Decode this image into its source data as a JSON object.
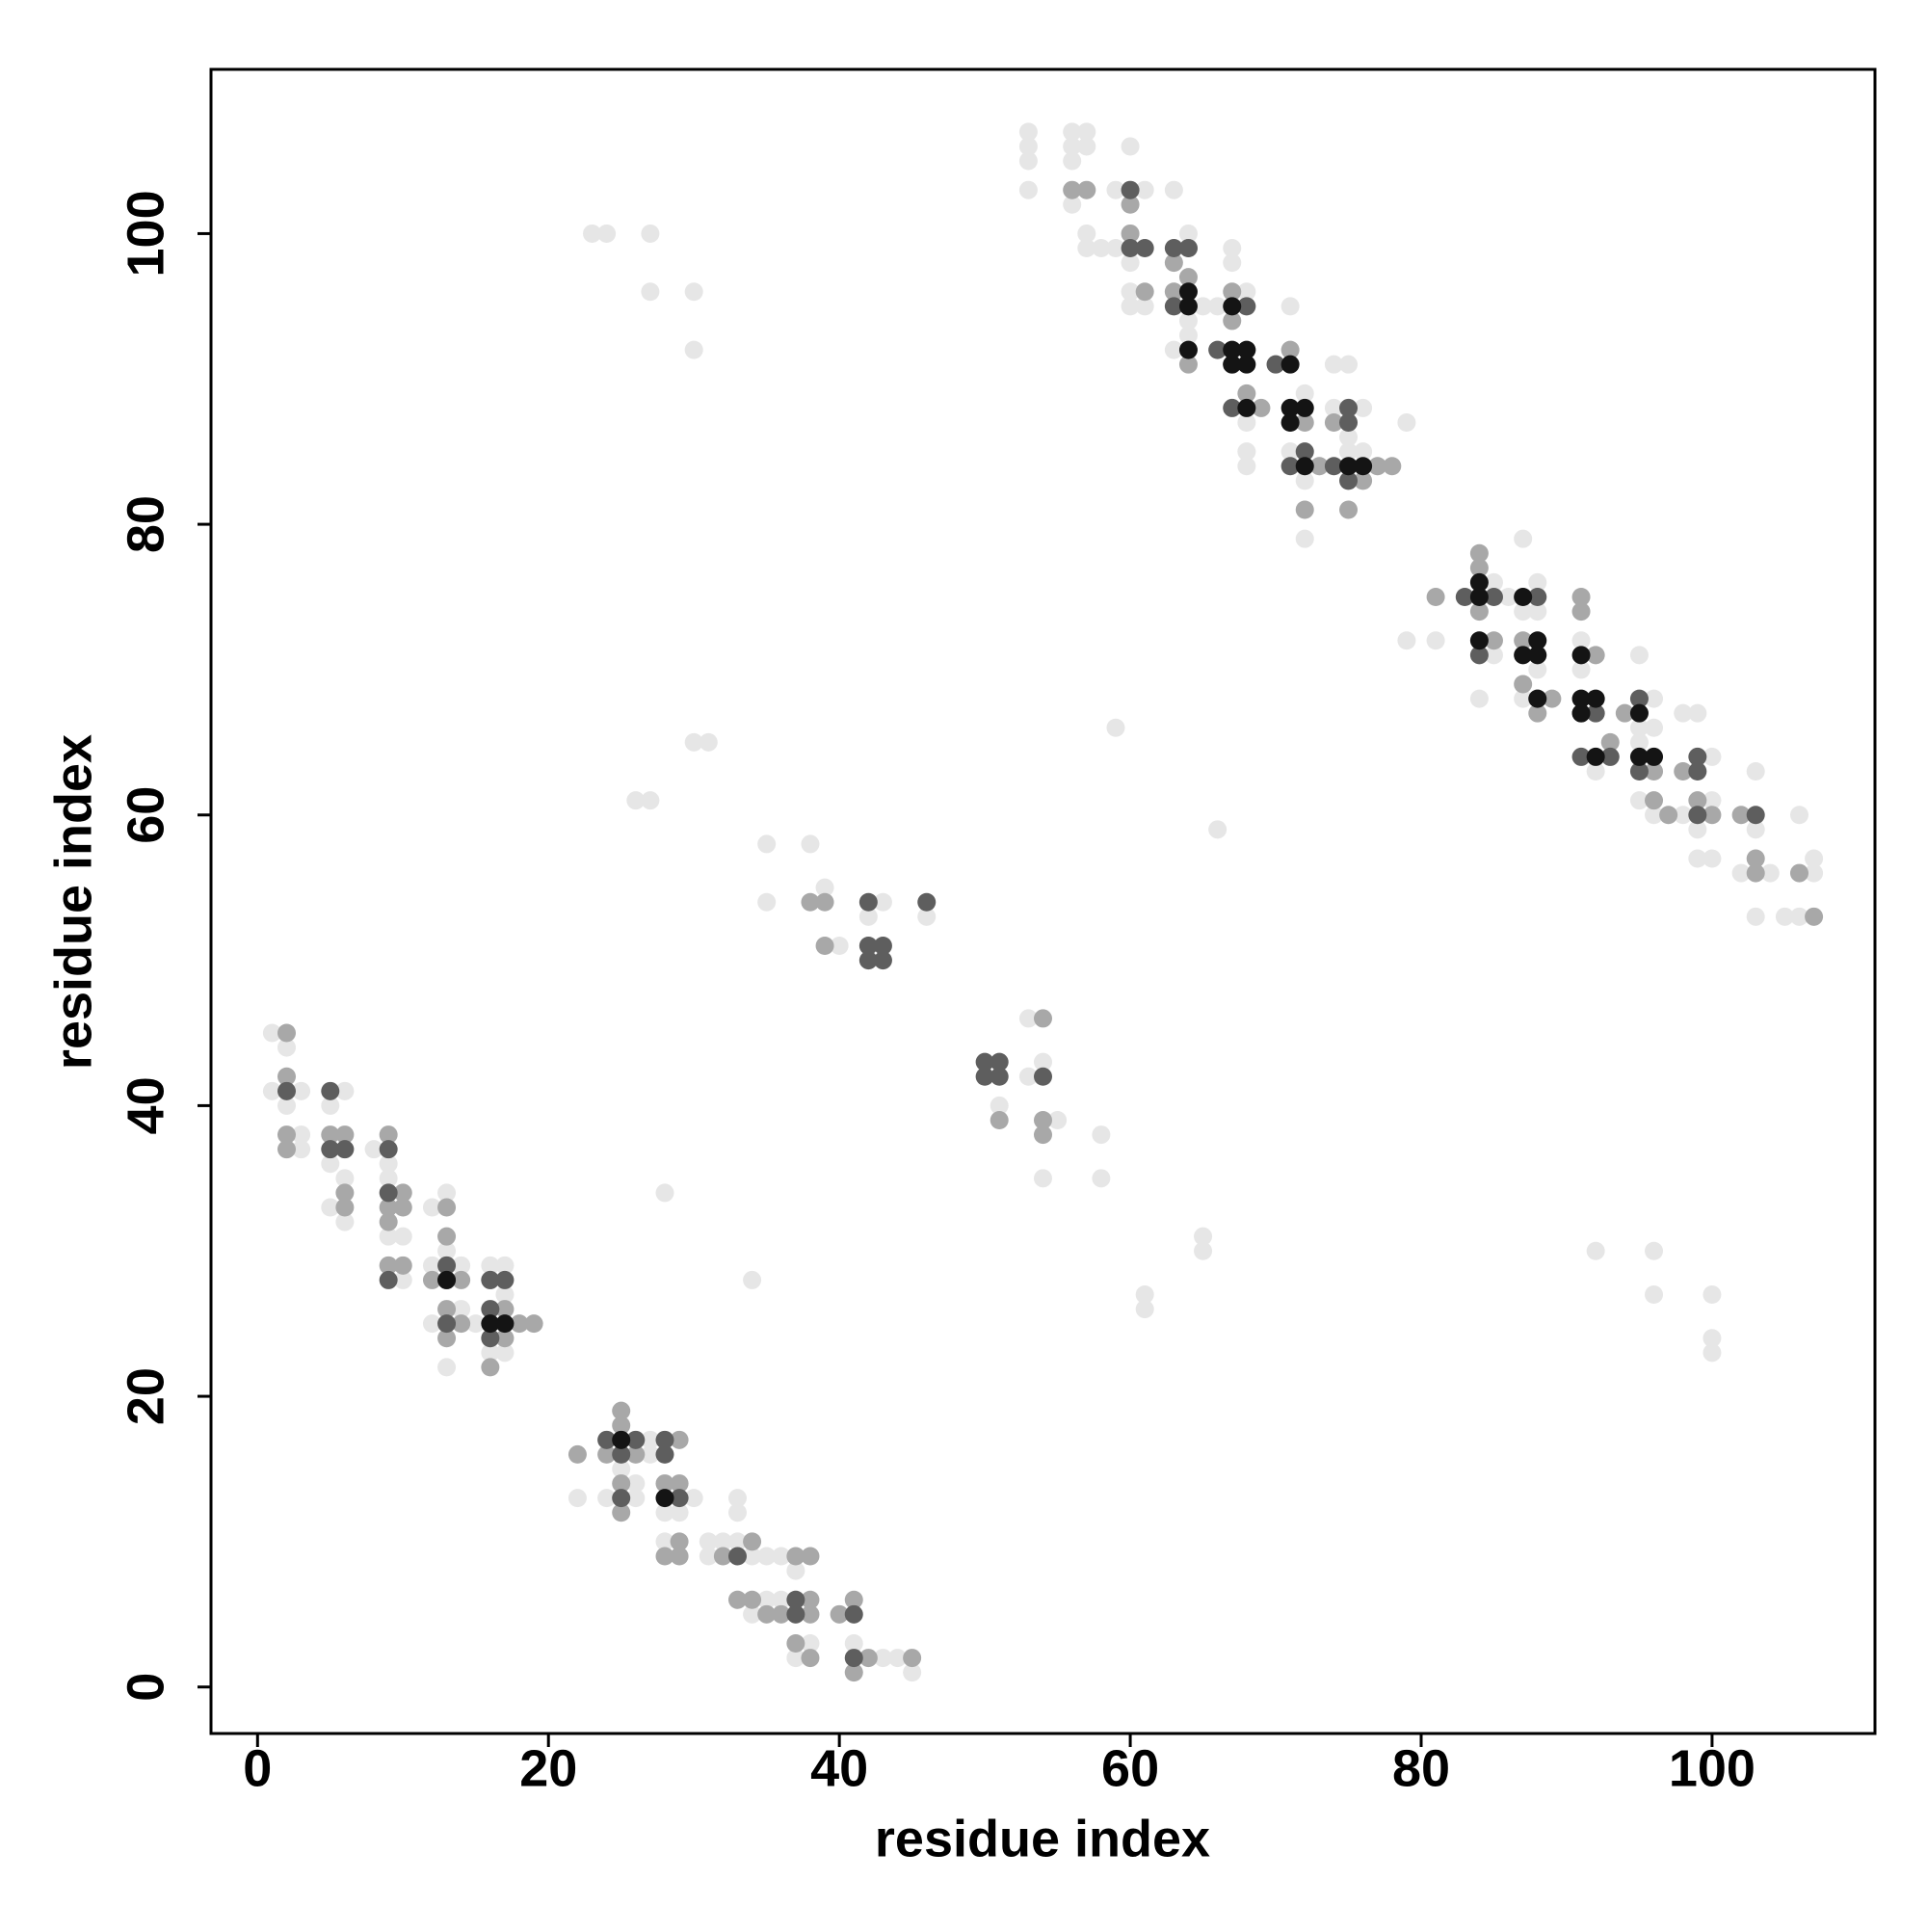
{
  "chart_data": {
    "type": "scatter",
    "x_label": "residue index",
    "y_label": "residue index",
    "xlim": [
      -3.2,
      111.2
    ],
    "ylim": [
      -3.2,
      111.3
    ],
    "xticks": [
      0,
      20,
      40,
      60,
      80,
      100
    ],
    "yticks": [
      0,
      20,
      40,
      60,
      80,
      100
    ],
    "grid": false,
    "series": [
      {
        "color": "#e6e6e6",
        "x": [
          1,
          1,
          2,
          2,
          3,
          3,
          3,
          5,
          5,
          5,
          6,
          6,
          6,
          8,
          9,
          9,
          9,
          10,
          10,
          12,
          12,
          12,
          13,
          13,
          13,
          14,
          14,
          15,
          16,
          16,
          17,
          17,
          17,
          22,
          24,
          24,
          25,
          26,
          26,
          27,
          27,
          28,
          28,
          29,
          30,
          31,
          31,
          32,
          32,
          33,
          33,
          33,
          33,
          34,
          34,
          35,
          35,
          36,
          36,
          37,
          37,
          37,
          38,
          40,
          41,
          43,
          45,
          44,
          23,
          24,
          27,
          27,
          30,
          30,
          30,
          31,
          26,
          27,
          28,
          34,
          35,
          38,
          35,
          40,
          42,
          43,
          46,
          39,
          53,
          53,
          54,
          51,
          55,
          54,
          58,
          58,
          59,
          66,
          61,
          61,
          65,
          65,
          92,
          96,
          96,
          100,
          100,
          100,
          79,
          81,
          79,
          53,
          53,
          53,
          53,
          56,
          56,
          56,
          56,
          57,
          57,
          57,
          57,
          58,
          59,
          59,
          60,
          60,
          60,
          60,
          60,
          61,
          61,
          63,
          63,
          63,
          64,
          64,
          64,
          65,
          66,
          67,
          67,
          67,
          68,
          68,
          68,
          68,
          68,
          70,
          71,
          71,
          72,
          72,
          72,
          73,
          74,
          74,
          75,
          75,
          75,
          76,
          76,
          77,
          84,
          84,
          85,
          85,
          86,
          87,
          87,
          87,
          88,
          88,
          88,
          91,
          91,
          92,
          93,
          95,
          95,
          95,
          96,
          96,
          98,
          98,
          99,
          99,
          99,
          100,
          100,
          100,
          102,
          103,
          103,
          103,
          104,
          105,
          106,
          106,
          106,
          107,
          107,
          96,
          95
        ],
        "values": [
          45,
          41,
          44,
          40,
          41,
          37,
          38,
          40,
          36,
          33,
          41,
          35,
          32,
          37,
          36,
          35,
          31,
          31,
          28,
          33,
          29,
          25,
          34,
          30,
          22,
          29,
          26,
          25,
          29,
          23,
          29,
          27,
          23,
          13,
          17,
          13,
          15,
          14,
          13,
          17,
          16,
          10,
          12,
          12,
          13,
          10,
          9,
          10,
          9,
          13,
          12,
          10,
          6,
          9,
          5,
          9,
          6,
          9,
          6,
          8,
          6,
          2,
          3,
          5,
          3,
          2,
          1,
          2,
          100,
          100,
          100,
          96,
          96,
          92,
          65,
          65,
          61,
          61,
          34,
          28,
          58,
          58,
          54,
          51,
          53,
          54,
          53,
          55,
          46,
          42,
          43,
          40,
          39,
          35,
          38,
          35,
          66,
          59,
          27,
          26,
          31,
          30,
          30,
          30,
          27,
          27,
          24,
          23,
          72,
          72,
          87,
          107,
          106,
          105,
          103,
          107,
          106,
          105,
          102,
          107,
          106,
          100,
          99,
          99,
          103,
          99,
          106,
          103,
          98,
          96,
          95,
          103,
          95,
          103,
          96,
          92,
          100,
          94,
          93,
          95,
          95,
          99,
          98,
          94,
          96,
          95,
          87,
          85,
          84,
          91,
          95,
          85,
          89,
          83,
          79,
          84,
          91,
          88,
          91,
          86,
          85,
          88,
          85,
          84,
          72,
          68,
          76,
          71,
          75,
          79,
          74,
          68,
          76,
          74,
          70,
          72,
          70,
          63,
          64,
          71,
          66,
          65,
          68,
          60,
          67,
          60,
          67,
          59,
          57,
          64,
          57,
          61,
          56,
          63,
          59,
          53,
          56,
          53,
          60,
          56,
          53,
          57,
          56,
          66,
          61
        ]
      },
      {
        "color": "#a8a8a8",
        "x": [
          2,
          2,
          2,
          2,
          5,
          6,
          6,
          6,
          9,
          9,
          9,
          9,
          10,
          10,
          10,
          13,
          13,
          13,
          13,
          14,
          16,
          17,
          17,
          18,
          19,
          16,
          12,
          14,
          22,
          24,
          25,
          25,
          25,
          25,
          26,
          28,
          28,
          29,
          29,
          29,
          29,
          32,
          34,
          34,
          35,
          37,
          38,
          38,
          38,
          38,
          37,
          41,
          42,
          45,
          40,
          41,
          33,
          36,
          38,
          39,
          39,
          51,
          54,
          54,
          54,
          56,
          57,
          60,
          60,
          61,
          63,
          64,
          64,
          64,
          63,
          67,
          67,
          68,
          69,
          71,
          71,
          72,
          72,
          73,
          74,
          75,
          76,
          77,
          78,
          81,
          84,
          84,
          84,
          85,
          87,
          87,
          88,
          89,
          88,
          91,
          91,
          92,
          93,
          94,
          96,
          96,
          97,
          98,
          99,
          100,
          102,
          103,
          103,
          107,
          106
        ],
        "values": [
          45,
          42,
          38,
          37,
          38,
          38,
          34,
          33,
          38,
          33,
          32,
          29,
          34,
          33,
          29,
          33,
          31,
          26,
          24,
          25,
          28,
          26,
          24,
          25,
          25,
          22,
          28,
          28,
          16,
          16,
          19,
          18,
          14,
          12,
          16,
          14,
          9,
          17,
          14,
          10,
          9,
          9,
          10,
          6,
          5,
          9,
          9,
          6,
          5,
          2,
          3,
          6,
          2,
          2,
          5,
          1,
          6,
          5,
          54,
          54,
          51,
          39,
          46,
          39,
          38,
          103,
          103,
          102,
          100,
          96,
          98,
          99,
          97,
          91,
          96,
          96,
          94,
          89,
          88,
          92,
          87,
          81,
          87,
          84,
          87,
          81,
          83,
          84,
          84,
          75,
          78,
          77,
          74,
          72,
          72,
          69,
          68,
          68,
          67,
          75,
          74,
          71,
          65,
          67,
          63,
          61,
          60,
          63,
          61,
          60,
          60,
          57,
          56,
          53,
          56
        ]
      },
      {
        "color": "#5e5e5e",
        "x": [
          2,
          5,
          5,
          6,
          9,
          9,
          9,
          13,
          13,
          16,
          16,
          17,
          13,
          16,
          24,
          25,
          26,
          25,
          28,
          28,
          29,
          33,
          37,
          37,
          41,
          41,
          42,
          42,
          43,
          42,
          43,
          46,
          50,
          51,
          50,
          51,
          54,
          60,
          60,
          61,
          63,
          64,
          63,
          66,
          67,
          67,
          68,
          70,
          72,
          71,
          75,
          75,
          74,
          75,
          83,
          85,
          84,
          88,
          91,
          91,
          92,
          93,
          95,
          95,
          99,
          99,
          99,
          103
        ],
        "values": [
          41,
          41,
          37,
          37,
          37,
          34,
          28,
          28,
          25,
          28,
          24,
          28,
          29,
          26,
          17,
          16,
          17,
          13,
          16,
          17,
          13,
          9,
          6,
          5,
          5,
          2,
          54,
          51,
          51,
          50,
          50,
          54,
          43,
          43,
          42,
          42,
          42,
          103,
          99,
          99,
          99,
          99,
          95,
          92,
          91,
          88,
          95,
          91,
          85,
          84,
          88,
          87,
          84,
          83,
          75,
          75,
          71,
          75,
          64,
          67,
          67,
          64,
          68,
          63,
          63,
          64,
          60,
          60
        ]
      },
      {
        "color": "#141414",
        "x": [
          16,
          17,
          13,
          25,
          28,
          64,
          64,
          64,
          67,
          67,
          68,
          67,
          68,
          68,
          71,
          71,
          72,
          71,
          72,
          75,
          76,
          84,
          84,
          84,
          87,
          87,
          88,
          88,
          88,
          91,
          91,
          92,
          91,
          92,
          95,
          95,
          96
        ],
        "values": [
          25,
          25,
          28,
          17,
          13,
          96,
          95,
          92,
          95,
          92,
          92,
          91,
          91,
          88,
          91,
          88,
          88,
          87,
          84,
          84,
          84,
          76,
          75,
          72,
          75,
          71,
          72,
          71,
          68,
          71,
          68,
          68,
          67,
          64,
          67,
          64,
          64
        ]
      }
    ]
  }
}
